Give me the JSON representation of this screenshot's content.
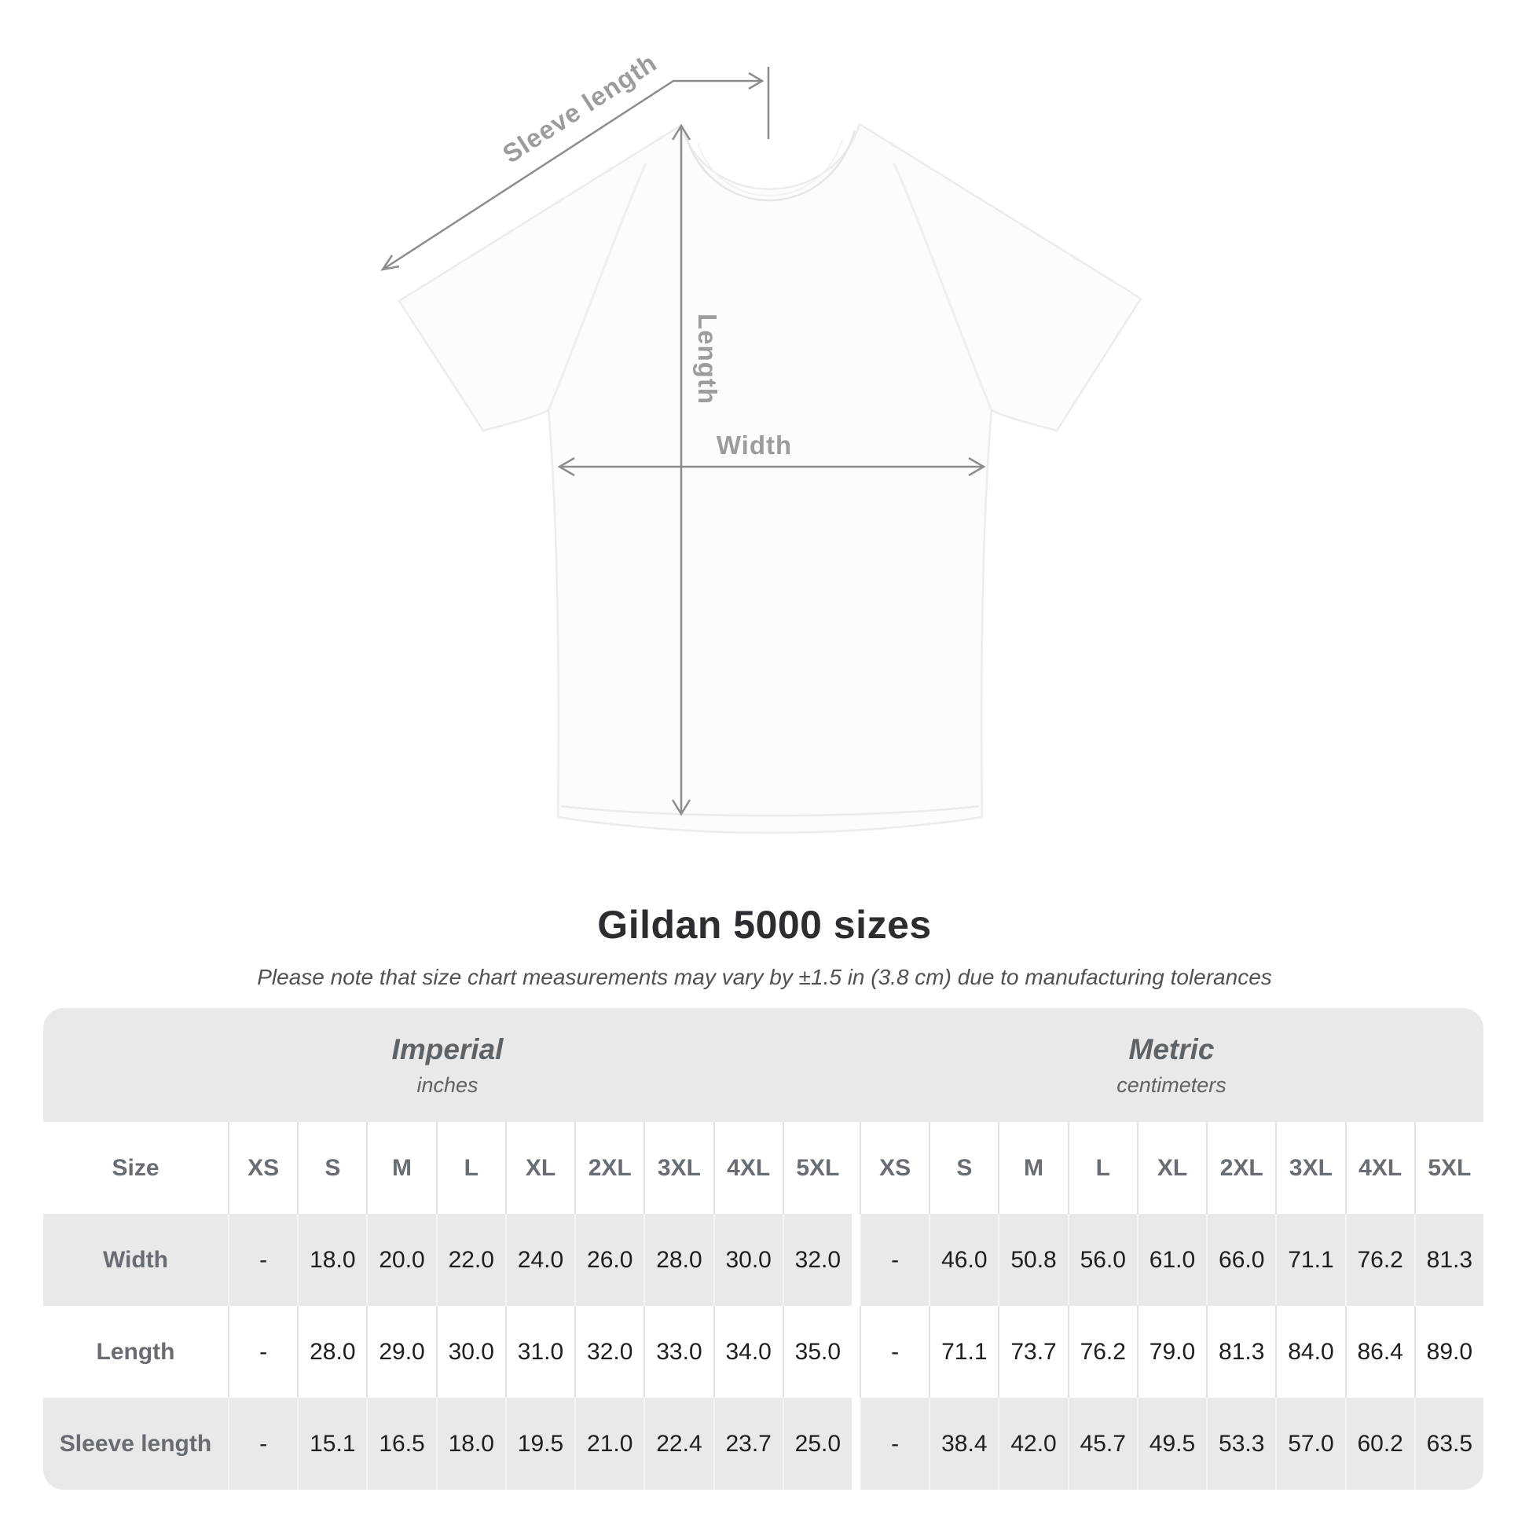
{
  "diagram": {
    "sleeve_length_label": "Sleeve length",
    "length_label": "Length",
    "width_label": "Width"
  },
  "heading": {
    "title": "Gildan 5000 sizes",
    "note": "Please note that size chart measurements may vary by ±1.5 in (3.8 cm) due to manufacturing tolerances"
  },
  "table": {
    "size_column_header": "Size",
    "groups": [
      {
        "label": "Imperial",
        "unit": "inches"
      },
      {
        "label": "Metric",
        "unit": "centimeters"
      }
    ],
    "sizes": [
      "XS",
      "S",
      "M",
      "L",
      "XL",
      "2XL",
      "3XL",
      "4XL",
      "5XL"
    ],
    "rows": [
      {
        "label": "Width",
        "imperial": [
          "-",
          "18.0",
          "20.0",
          "22.0",
          "24.0",
          "26.0",
          "28.0",
          "30.0",
          "32.0"
        ],
        "metric": [
          "-",
          "46.0",
          "50.8",
          "56.0",
          "61.0",
          "66.0",
          "71.1",
          "76.2",
          "81.3"
        ]
      },
      {
        "label": "Length",
        "imperial": [
          "-",
          "28.0",
          "29.0",
          "30.0",
          "31.0",
          "32.0",
          "33.0",
          "34.0",
          "35.0"
        ],
        "metric": [
          "-",
          "71.1",
          "73.7",
          "76.2",
          "79.0",
          "81.3",
          "84.0",
          "86.4",
          "89.0"
        ]
      },
      {
        "label": "Sleeve length",
        "imperial": [
          "-",
          "15.1",
          "16.5",
          "18.0",
          "19.5",
          "21.0",
          "22.4",
          "23.7",
          "25.0"
        ],
        "metric": [
          "-",
          "38.4",
          "42.0",
          "45.7",
          "49.5",
          "53.3",
          "57.0",
          "60.2",
          "63.5"
        ]
      }
    ]
  },
  "colors": {
    "band_gray": "#e9e9e9",
    "header_text": "#676d72",
    "value_text": "#1e1e1e",
    "annotation_gray": "#9c9c9c",
    "arrow_gray": "#8d8d8d"
  }
}
